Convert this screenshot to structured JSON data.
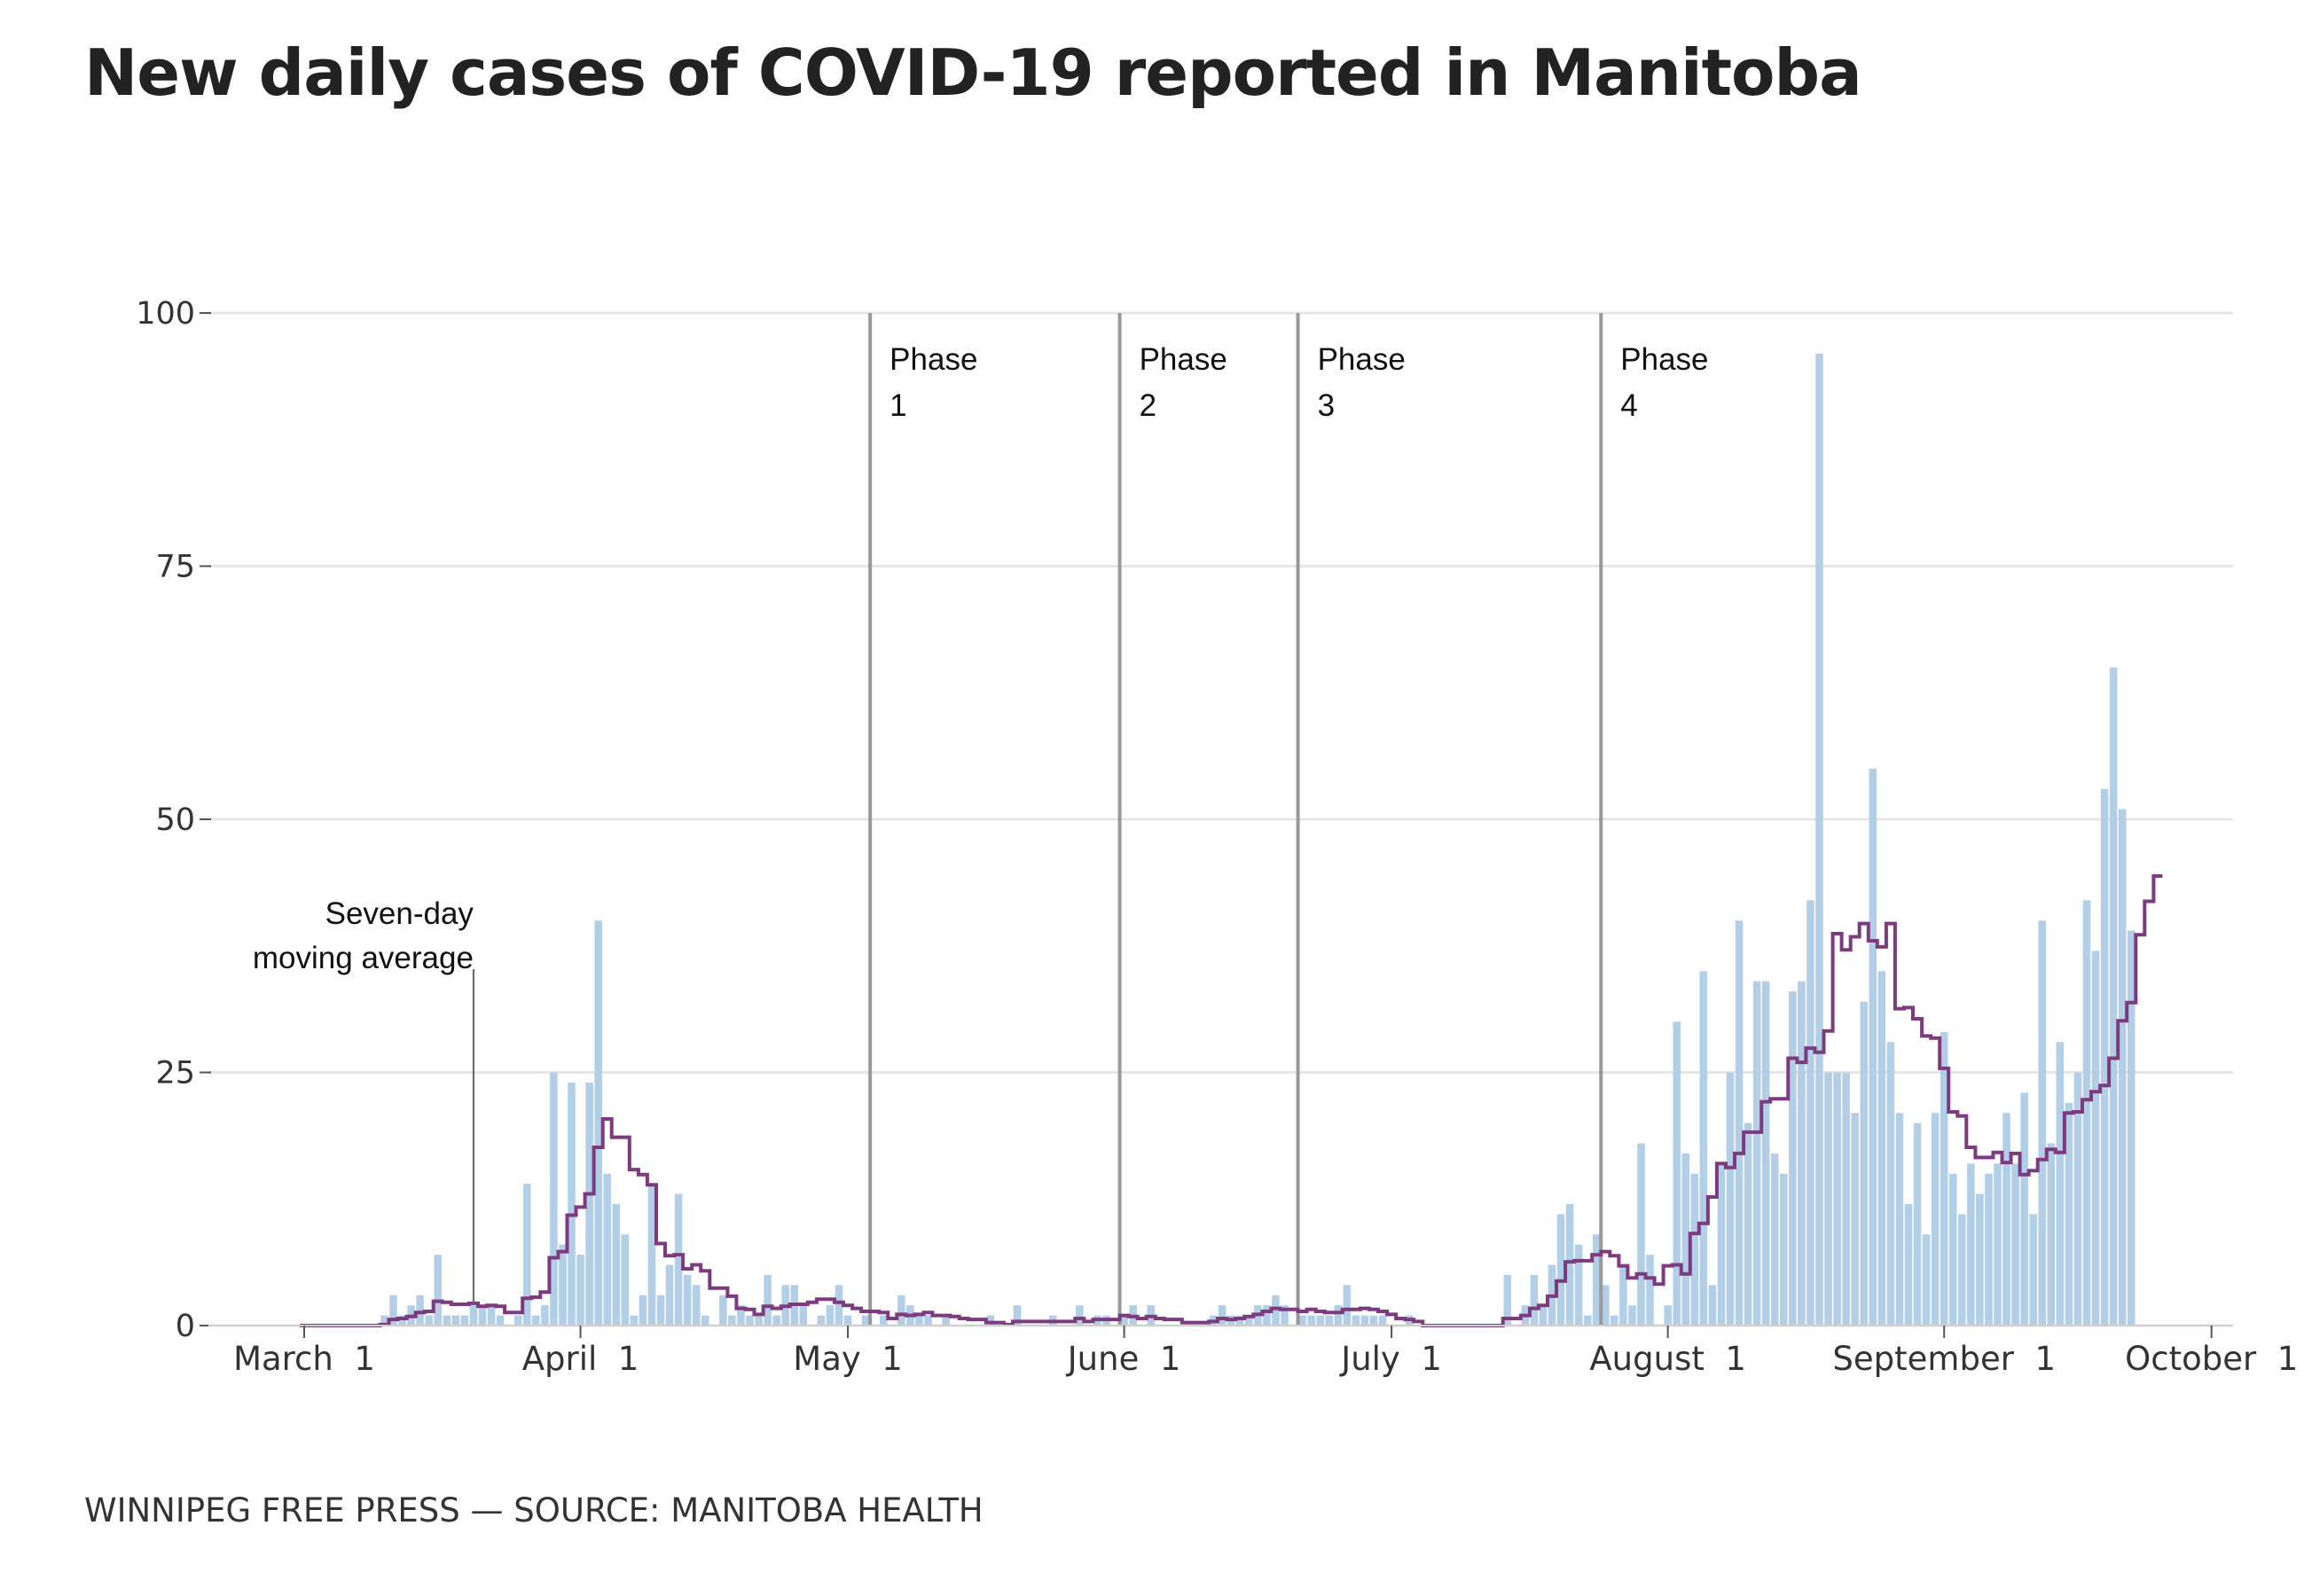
{
  "title": "New daily cases of COVID-19 reported in Manitoba",
  "credit": "WINNIPEG FREE PRESS — SOURCE: MANITOBA HEALTH",
  "colors": {
    "bars": "#b3cfe7",
    "average_line": "#7d3a7e",
    "phase_lines": "#999999",
    "grid": "#e6e6e6"
  },
  "chart_data": {
    "type": "bar",
    "title": "New daily cases of COVID-19 reported in Manitoba",
    "x_start": "2020-03-01",
    "ylim": [
      0,
      100
    ],
    "yticks": [
      "0",
      "25",
      "50",
      "75",
      "100"
    ],
    "xticks": [
      "March  1",
      "April  1",
      "May  1",
      "June  1",
      "July  1",
      "August  1",
      "September  1",
      "October  1"
    ],
    "grid": true,
    "values": [
      0,
      0,
      0,
      0,
      0,
      0,
      0,
      0,
      0,
      1,
      3,
      1,
      2,
      3,
      1,
      7,
      1,
      1,
      1,
      2,
      2,
      2,
      1,
      0,
      1,
      14,
      1,
      2,
      25,
      8,
      24,
      7,
      24,
      40,
      15,
      12,
      9,
      1,
      3,
      14,
      3,
      6,
      13,
      5,
      4,
      1,
      0,
      3,
      1,
      2,
      1,
      1,
      5,
      1,
      4,
      4,
      2,
      0,
      1,
      2,
      4,
      1,
      0,
      1,
      0,
      1,
      0,
      3,
      2,
      1,
      1,
      0,
      1,
      0,
      0,
      0,
      0,
      1,
      0,
      0,
      2,
      0,
      0,
      0,
      1,
      0,
      0,
      2,
      0,
      1,
      1,
      0,
      1,
      2,
      0,
      2,
      0,
      0,
      0,
      0,
      0,
      0,
      1,
      2,
      1,
      1,
      1,
      2,
      2,
      3,
      2,
      0,
      1,
      1,
      1,
      1,
      2,
      4,
      1,
      1,
      1,
      1,
      0,
      0,
      1,
      0,
      0,
      0,
      0,
      0,
      0,
      0,
      0,
      0,
      0,
      5,
      0,
      2,
      5,
      2,
      6,
      11,
      12,
      8,
      1,
      9,
      4,
      1,
      6,
      2,
      18,
      7,
      0,
      2,
      30,
      17,
      15,
      35,
      4,
      16,
      25,
      40,
      20,
      34,
      34,
      17,
      15,
      33,
      34,
      42,
      96,
      25,
      25,
      25,
      21,
      32,
      55,
      35,
      28,
      21,
      12,
      20,
      9,
      21,
      29,
      15,
      11,
      16,
      13,
      15,
      16,
      21,
      16,
      23,
      11,
      40,
      18,
      28,
      22,
      25,
      42,
      37,
      53,
      65,
      51,
      39
    ],
    "series": [
      {
        "name": "Seven-day moving average",
        "values": [
          0,
          0,
          0,
          0,
          0,
          0,
          0,
          0,
          0,
          0.1,
          0.6,
          0.7,
          0.9,
          1.3,
          1.4,
          2.4,
          2.3,
          2.1,
          2.1,
          2.2,
          1.9,
          2.0,
          1.9,
          1.3,
          1.3,
          2.7,
          2.8,
          3.3,
          6.7,
          7.3,
          10.9,
          11.7,
          13.0,
          17.6,
          20.4,
          18.6,
          18.6,
          15.4,
          14.9,
          13.9,
          8.1,
          6.9,
          7.0,
          5.6,
          6.0,
          5.4,
          3.7,
          3.7,
          2.9,
          1.7,
          1.6,
          1.1,
          1.9,
          1.7,
          1.9,
          2.1,
          2.1,
          2.3,
          2.6,
          2.6,
          2.3,
          2.0,
          1.7,
          1.4,
          1.4,
          1.3,
          0.7,
          1.1,
          1.0,
          1.1,
          1.3,
          1.0,
          1.0,
          0.9,
          0.7,
          0.6,
          0.6,
          0.3,
          0.3,
          0.1,
          0.4,
          0.4,
          0.4,
          0.4,
          0.4,
          0.4,
          0.4,
          0.7,
          0.4,
          0.6,
          0.6,
          0.6,
          1.0,
          0.9,
          0.7,
          0.9,
          0.7,
          0.6,
          0.6,
          0.3,
          0.3,
          0.3,
          0.4,
          0.7,
          0.6,
          0.7,
          0.9,
          1.1,
          1.4,
          1.7,
          1.6,
          1.6,
          1.4,
          1.6,
          1.4,
          1.3,
          1.3,
          1.6,
          1.6,
          1.7,
          1.6,
          1.4,
          1.1,
          0.7,
          0.6,
          0.4,
          0,
          0,
          0,
          0,
          0,
          0,
          0,
          0,
          0,
          0.7,
          0.7,
          1.0,
          1.7,
          2.0,
          2.9,
          4.4,
          6.3,
          6.4,
          6.4,
          7.0,
          7.3,
          6.9,
          5.9,
          4.7,
          5.1,
          4.7,
          4.1,
          5.9,
          6.0,
          5.1,
          9.1,
          10.1,
          12.7,
          16.0,
          15.6,
          17.0,
          19.1,
          19.1,
          22.1,
          22.4,
          22.4,
          26.4,
          26.0,
          27.4,
          27.0,
          29.1,
          38.7,
          37.1,
          38.4,
          39.7,
          38.0,
          37.4,
          39.7,
          31.3,
          31.4,
          30.3,
          28.6,
          28.4,
          25.4,
          21.1,
          20.7,
          17.6,
          16.6,
          16.6,
          17.1,
          16.1,
          17.0,
          14.9,
          15.3,
          16.4,
          17.4,
          17.1,
          21.0,
          21.1,
          22.3,
          23.1,
          23.7,
          26.4,
          30.1,
          31.9,
          38.6,
          41.9,
          44.4
        ]
      }
    ],
    "phases": [
      {
        "label": "Phase\n1",
        "date": "2020-05-04"
      },
      {
        "label": "Phase\n2",
        "date": "2020-06-01"
      },
      {
        "label": "Phase\n3",
        "date": "2020-06-21"
      },
      {
        "label": "Phase\n4",
        "date": "2020-07-25"
      }
    ],
    "annotation": {
      "text": "Seven-day\nmoving average",
      "date": "2020-03-20"
    }
  }
}
